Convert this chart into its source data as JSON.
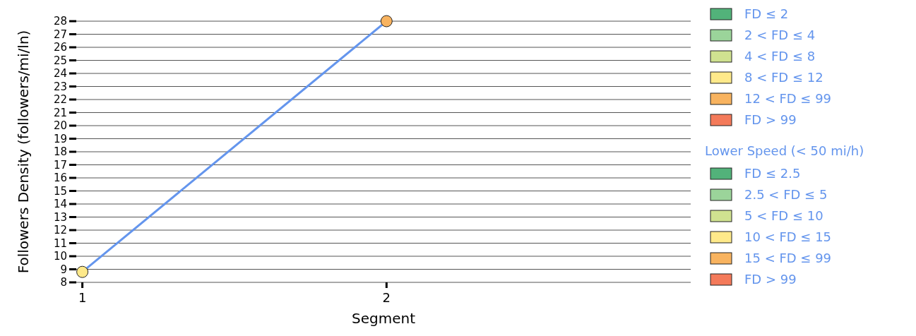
{
  "chart_data": {
    "type": "line",
    "xlabel": "Segment",
    "ylabel": "Followers Density (followers/mi/ln)",
    "x": [
      1,
      2
    ],
    "xlim": [
      0.98,
      3
    ],
    "xticks": [
      1,
      2
    ],
    "ylim": [
      8,
      28
    ],
    "yticks": [
      8,
      9,
      10,
      11,
      12,
      13,
      14,
      15,
      16,
      17,
      18,
      19,
      20,
      21,
      22,
      23,
      24,
      25,
      26,
      27,
      28
    ],
    "grid": "y",
    "legend": "right",
    "annotations": [
      "Lower Speed (< 50 mi/h)"
    ],
    "series": [
      {
        "color": "#6495ed",
        "values": [
          8.8,
          28
        ],
        "marker": "none",
        "line_style": "solid"
      },
      {
        "type": "scatter",
        "name": "FD ≤ 2",
        "color": "#52b27a",
        "values": [
          null,
          null
        ]
      },
      {
        "type": "scatter",
        "name": "2 < FD ≤ 4",
        "color": "#9bd49a",
        "values": [
          null,
          null
        ]
      },
      {
        "type": "scatter",
        "name": "4 < FD ≤ 8",
        "color": "#d0e290",
        "values": [
          null,
          null
        ]
      },
      {
        "type": "scatter",
        "name": "8 < FD ≤ 12",
        "color": "#fee98a",
        "values": [
          8.8,
          null
        ]
      },
      {
        "type": "scatter",
        "name": "12 < FD ≤ 99",
        "color": "#f8b35f",
        "values": [
          null,
          28
        ]
      },
      {
        "type": "scatter",
        "name": "FD > 99",
        "color": "#f47a5a",
        "values": [
          null,
          null
        ]
      },
      {
        "type": "scatter",
        "name": "FD ≤ 2.5",
        "color": "#52b27a",
        "values": [
          null,
          null
        ]
      },
      {
        "type": "scatter",
        "name": "2.5 < FD ≤ 5",
        "color": "#9bd49a",
        "values": [
          null,
          null
        ]
      },
      {
        "type": "scatter",
        "name": "5 < FD ≤ 10",
        "color": "#d0e290",
        "values": [
          null,
          null
        ]
      },
      {
        "type": "scatter",
        "name": "10 < FD ≤ 15",
        "color": "#fee98a",
        "values": [
          null,
          null
        ]
      },
      {
        "type": "scatter",
        "name": "15 < FD ≤ 99",
        "color": "#f8b35f",
        "values": [
          null,
          null
        ]
      },
      {
        "type": "scatter",
        "name": "FD > 99",
        "color": "#f47a5a",
        "values": [
          null,
          null
        ]
      }
    ]
  }
}
